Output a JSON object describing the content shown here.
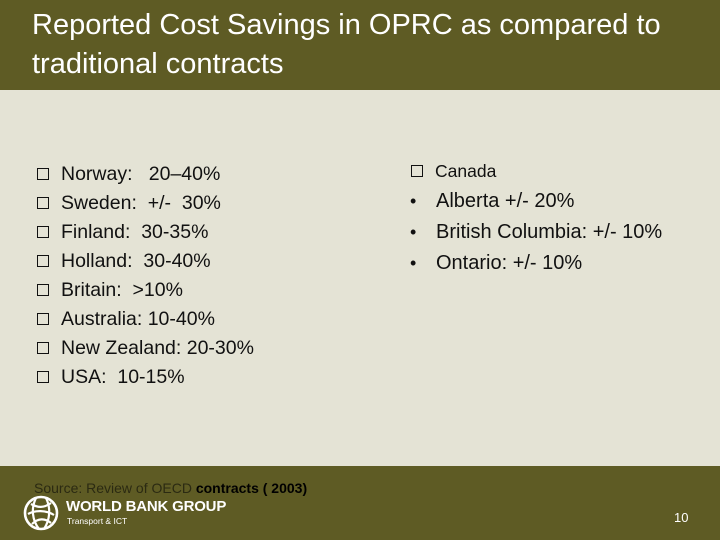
{
  "slide": {
    "title": "Reported Cost Savings in OPRC as compared to traditional contracts",
    "page_number": "10"
  },
  "left_list": {
    "items": [
      "Norway:   20–40%",
      "Sweden:  +/-  30%",
      "Finland:  30-35%",
      "Holland:  30-40%",
      "Britain:  >10%",
      "Australia: 10-40%",
      "New Zealand: 20-30%",
      "USA:  10-15%"
    ]
  },
  "right_list": {
    "heading": "Canada",
    "items": [
      "Alberta +/- 20%",
      "British Columbia: +/- 10%",
      "Ontario: +/- 10%"
    ]
  },
  "footer": {
    "source_prefix": "Source: Review of OECD ",
    "source_emphasis": "contracts ( 2003)",
    "logo_name": "WORLD BANK GROUP",
    "logo_sub": "Transport & ICT"
  },
  "icons": {
    "box_bullet": "square-outline-icon",
    "dot_bullet": "bullet-dot-icon",
    "logo": "world-bank-globe-icon"
  },
  "colors": {
    "band": "#5e5b24",
    "panel": "#e4e3d5",
    "background": "#bcb9a0"
  }
}
